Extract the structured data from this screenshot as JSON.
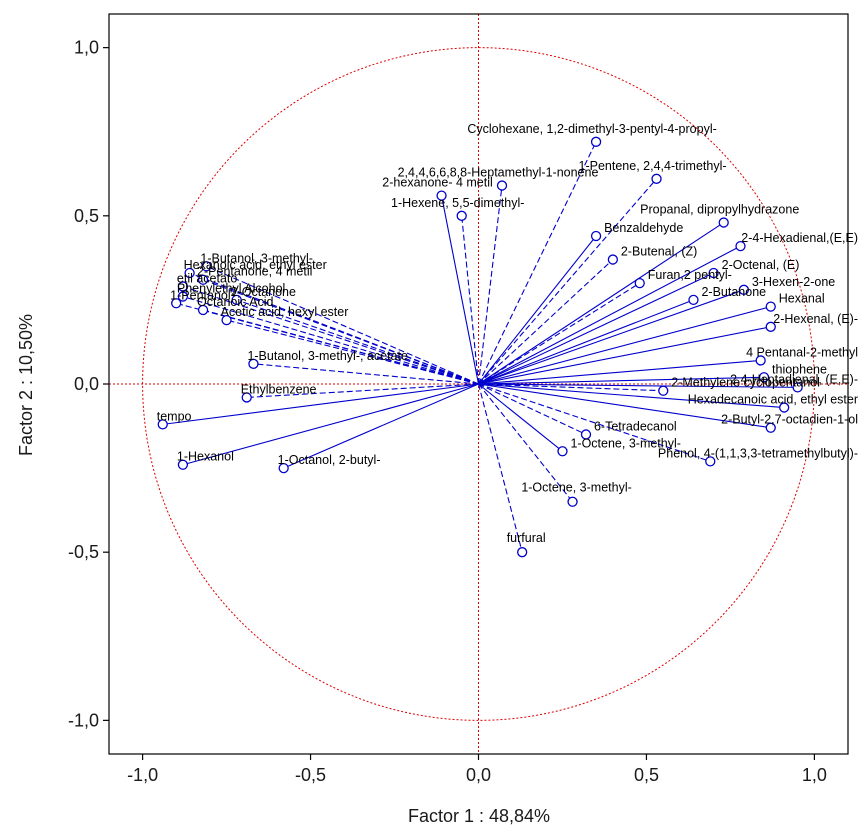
{
  "chart_data": {
    "type": "scatter",
    "subtype": "pca-correlation-circle",
    "xlabel": "Factor 1 : 48,84%",
    "ylabel": "Factor 2 : 10,50%",
    "xlim": [
      -1.1,
      1.1
    ],
    "ylim": [
      -1.1,
      1.1
    ],
    "xticks": [
      "-1,0",
      "-0,5",
      "0,0",
      "0,5",
      "1,0"
    ],
    "yticks": [
      "1,0",
      "0,5",
      "0,0",
      "-0,5",
      "-1,0"
    ],
    "xtick_values": [
      -1.0,
      -0.5,
      0.0,
      0.5,
      1.0
    ],
    "ytick_values": [
      1.0,
      0.5,
      0.0,
      -0.5,
      -1.0
    ],
    "circle_radius": 1.0,
    "colors": {
      "vector": "#0000cc",
      "circle": "#dd0000",
      "frame": "#000000"
    },
    "variables": [
      {
        "label": "Cyclohexane, 1,2-dimethyl-3-pentyl-4-propyl-",
        "x": 0.35,
        "y": 0.72,
        "style": "dashed"
      },
      {
        "label": "1-Pentene, 2,4,4-trimethyl-",
        "x": 0.53,
        "y": 0.61,
        "style": "dashed"
      },
      {
        "label": "2,4,4,6,6,8,8-Heptamethyl-1-nonene",
        "x": 0.07,
        "y": 0.59,
        "style": "dashed"
      },
      {
        "label": "2-hexanone- 4 metil",
        "x": -0.11,
        "y": 0.56,
        "style": "solid"
      },
      {
        "label": "1-Hexene, 5,5-dimethyl-",
        "x": -0.05,
        "y": 0.5,
        "style": "dashed"
      },
      {
        "label": "Propanal, dipropylhydrazone",
        "x": 0.73,
        "y": 0.48,
        "style": "solid"
      },
      {
        "label": "Benzaldehyde",
        "x": 0.35,
        "y": 0.44,
        "style": "solid"
      },
      {
        "label": "2-4-Hexadienal,(E,E)",
        "x": 0.78,
        "y": 0.41,
        "style": "solid"
      },
      {
        "label": "2-Butenal, (Z)",
        "x": 0.4,
        "y": 0.37,
        "style": "dashed"
      },
      {
        "label": "2-Octenal, (E)",
        "x": 0.7,
        "y": 0.33,
        "style": "solid"
      },
      {
        "label": "Furan,2 pentyl-",
        "x": 0.48,
        "y": 0.3,
        "style": "dashed"
      },
      {
        "label": "3-Hexen-2-one",
        "x": 0.79,
        "y": 0.28,
        "style": "solid"
      },
      {
        "label": "2-Butanone",
        "x": 0.64,
        "y": 0.25,
        "style": "solid"
      },
      {
        "label": "Hexanal",
        "x": 0.87,
        "y": 0.23,
        "style": "solid"
      },
      {
        "label": "2-Hexenal, (E)-",
        "x": 0.87,
        "y": 0.17,
        "style": "solid"
      },
      {
        "label": "1-Butanol, 3-methyl-",
        "x": -0.81,
        "y": 0.35,
        "style": "dashed"
      },
      {
        "label": "Hexanoic acid, ethyl ester",
        "x": -0.86,
        "y": 0.33,
        "style": "dashed"
      },
      {
        "label": "2-Pentanone, 4 metil",
        "x": -0.82,
        "y": 0.31,
        "style": "dashed"
      },
      {
        "label": "etil acetato",
        "x": -0.88,
        "y": 0.29,
        "style": "dashed"
      },
      {
        "label": "Phenylethyl Alcohol",
        "x": -0.88,
        "y": 0.26,
        "style": "dashed"
      },
      {
        "label": "2-Octanone",
        "x": -0.72,
        "y": 0.25,
        "style": "dashed"
      },
      {
        "label": "1-Pentanol",
        "x": -0.9,
        "y": 0.24,
        "style": "dashed"
      },
      {
        "label": "Octanoic Acid",
        "x": -0.82,
        "y": 0.22,
        "style": "dashed"
      },
      {
        "label": "Acetic acid, hexyl ester",
        "x": -0.75,
        "y": 0.19,
        "style": "dashed"
      },
      {
        "label": "1-Butanol, 3-methyl-, acetate",
        "x": -0.67,
        "y": 0.06,
        "style": "dashed"
      },
      {
        "label": "Ethylbenzene",
        "x": -0.69,
        "y": -0.04,
        "style": "dashed"
      },
      {
        "label": "tempo",
        "x": -0.94,
        "y": -0.12,
        "style": "solid"
      },
      {
        "label": "1-Hexanol",
        "x": -0.88,
        "y": -0.24,
        "style": "solid"
      },
      {
        "label": "1-Octanol, 2-butyl-",
        "x": -0.58,
        "y": -0.25,
        "style": "solid"
      },
      {
        "label": "4 Pentanal-2-methyl",
        "x": 0.84,
        "y": 0.07,
        "style": "solid"
      },
      {
        "label": "thiophene",
        "x": 0.85,
        "y": 0.02,
        "style": "solid"
      },
      {
        "label": "2,4-Heptadienal, (E,E)-",
        "x": 0.95,
        "y": -0.01,
        "style": "solid"
      },
      {
        "label": "2-Methylene cyclopentanol",
        "x": 0.55,
        "y": -0.02,
        "style": "dashed"
      },
      {
        "label": "Hexadecanoic acid, ethyl ester",
        "x": 0.91,
        "y": -0.07,
        "style": "solid"
      },
      {
        "label": "2-Butyl-2,7-octadien-1-ol",
        "x": 0.87,
        "y": -0.13,
        "style": "solid"
      },
      {
        "label": "6-Tetradecanol",
        "x": 0.32,
        "y": -0.15,
        "style": "dashed"
      },
      {
        "label": "Phenol, 4-(1,1,3,3-tetramethylbutyl)-",
        "x": 0.69,
        "y": -0.23,
        "style": "dashed"
      },
      {
        "label": "1-Octene, 3-methyl-",
        "x": 0.25,
        "y": -0.2,
        "style": "solid"
      },
      {
        "label": "1-Octene, 3-methyl-",
        "x": 0.28,
        "y": -0.35,
        "style": "dashed"
      },
      {
        "label": "furfural",
        "x": 0.13,
        "y": -0.5,
        "style": "dashed"
      }
    ]
  }
}
